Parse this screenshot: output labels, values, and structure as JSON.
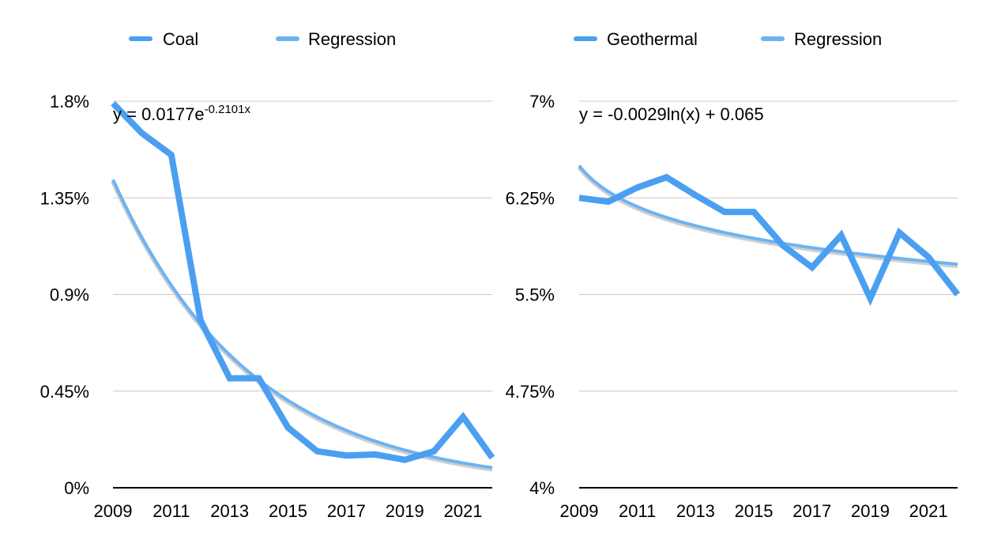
{
  "colors": {
    "series": "#4a9ff0",
    "regression": "#6db3f2",
    "grid": "#c8c8c8",
    "axis": "#000000"
  },
  "chart_data": [
    {
      "type": "line",
      "legend": {
        "position": "top",
        "entries": [
          "Coal",
          "Regression"
        ]
      },
      "series": [
        {
          "name": "Coal",
          "values": [
            1.79,
            1.65,
            1.55,
            0.78,
            0.51,
            0.51,
            0.28,
            0.17,
            0.15,
            0.155,
            0.13,
            0.17,
            0.33,
            0.14
          ]
        }
      ],
      "x": [
        2009,
        2010,
        2011,
        2012,
        2013,
        2014,
        2015,
        2016,
        2017,
        2018,
        2019,
        2020,
        2021,
        2022
      ],
      "x_ticks": [
        "2009",
        "2011",
        "2013",
        "2015",
        "2017",
        "2019",
        "2021"
      ],
      "regression": {
        "label": "Regression",
        "equation": "y = 0.0177e",
        "exponent": "-0.2101x",
        "a": 1.77,
        "b": -0.2101
      },
      "ylim": [
        0,
        1.8
      ],
      "y_ticks": [
        {
          "value": 0,
          "label": "0%"
        },
        {
          "value": 0.45,
          "label": "0.45%"
        },
        {
          "value": 0.9,
          "label": "0.9%"
        },
        {
          "value": 1.35,
          "label": "1.35%"
        },
        {
          "value": 1.8,
          "label": "1.8%"
        }
      ],
      "grid": true
    },
    {
      "type": "line",
      "legend": {
        "position": "top",
        "entries": [
          "Geothermal",
          "Regression"
        ]
      },
      "series": [
        {
          "name": "Geothermal",
          "values": [
            6.25,
            6.22,
            6.33,
            6.41,
            6.27,
            6.14,
            6.14,
            5.88,
            5.71,
            5.96,
            5.47,
            5.98,
            5.79,
            5.5
          ]
        }
      ],
      "x": [
        2009,
        2010,
        2011,
        2012,
        2013,
        2014,
        2015,
        2016,
        2017,
        2018,
        2019,
        2020,
        2021,
        2022
      ],
      "x_ticks": [
        "2009",
        "2011",
        "2013",
        "2015",
        "2017",
        "2019",
        "2021"
      ],
      "regression": {
        "label": "Regression",
        "equation": "y = -0.0029ln(x) + 0.065",
        "a": -0.29,
        "b": 6.5
      },
      "ylim": [
        4,
        7
      ],
      "y_ticks": [
        {
          "value": 4,
          "label": "4%"
        },
        {
          "value": 4.75,
          "label": "4.75%"
        },
        {
          "value": 5.5,
          "label": "5.5%"
        },
        {
          "value": 6.25,
          "label": "6.25%"
        },
        {
          "value": 7,
          "label": "7%"
        }
      ],
      "grid": true
    }
  ]
}
